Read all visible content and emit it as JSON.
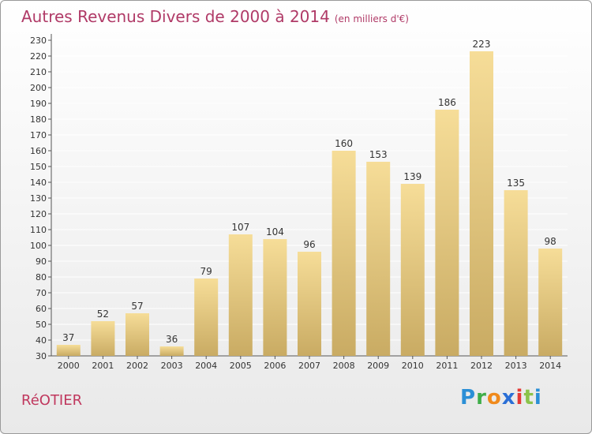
{
  "title": "Autres Revenus Divers de 2000 à 2014",
  "subtitle": "(en milliers d'€)",
  "town": "RéOTIER",
  "logo": {
    "p": "P",
    "r": "r",
    "o": "o",
    "x": "x",
    "i": "i",
    "t": "t",
    "i2": "i"
  },
  "colors": {
    "bar_light": "#f6dd98",
    "bar_dark": "#c9ab63",
    "title": "#b03a67"
  },
  "chart_data": {
    "type": "bar",
    "categories": [
      "2000",
      "2001",
      "2002",
      "2003",
      "2004",
      "2005",
      "2006",
      "2007",
      "2008",
      "2009",
      "2010",
      "2011",
      "2012",
      "2013",
      "2014"
    ],
    "values": [
      37,
      52,
      57,
      36,
      79,
      107,
      104,
      96,
      160,
      153,
      139,
      186,
      223,
      135,
      98
    ],
    "ylim": [
      30,
      230
    ],
    "ytick_step": 10,
    "grid": true
  }
}
